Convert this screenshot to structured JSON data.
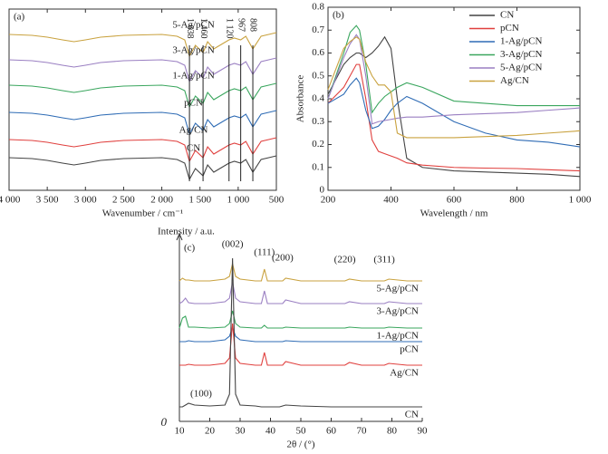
{
  "chart_data": [
    {
      "type": "line",
      "panel_label": "(a)",
      "xlabel": "Wavenumber / cm⁻¹",
      "reverse_x": true,
      "x": [
        4000,
        3700,
        3500,
        3300,
        3150,
        3000,
        2800,
        2500,
        2000,
        1800,
        1700,
        1638,
        1560,
        1460,
        1400,
        1320,
        1240,
        1120,
        1050,
        967,
        900,
        808,
        700,
        600,
        500
      ],
      "xlim": [
        4000,
        500
      ],
      "xticks": [
        {
          "value": 4000,
          "label": "4 000"
        },
        {
          "value": 3500,
          "label": "3 500"
        },
        {
          "value": 3000,
          "label": "3 000"
        },
        {
          "value": 2500,
          "label": "2 500"
        },
        {
          "value": 2000,
          "label": "2 000"
        },
        {
          "value": 1500,
          "label": "1 500"
        },
        {
          "value": 1000,
          "label": "1 000"
        },
        500
      ],
      "ylim": [
        0,
        100
      ],
      "annotations": [
        {
          "value": 1638,
          "label": "1 638"
        },
        {
          "value": 1460,
          "label": "1 460"
        },
        {
          "value": 1120,
          "label": "1 120"
        },
        {
          "value": 967,
          "label": "967"
        },
        {
          "value": 808,
          "label": "808"
        }
      ],
      "series": [
        {
          "name": "5-Ag/pCN",
          "color": "#c9a23f",
          "values": [
            86,
            85.5,
            84.5,
            83,
            82,
            83,
            84.5,
            85.5,
            86,
            85,
            83,
            74,
            80,
            76,
            82,
            78,
            80,
            83,
            84,
            83,
            85,
            78,
            85,
            86,
            87
          ]
        },
        {
          "name": "3-Ag/pCN",
          "color": "#9a7fc2",
          "values": [
            72,
            71.5,
            70.5,
            69,
            68,
            69,
            70.5,
            71.5,
            72,
            71,
            69,
            60,
            66,
            62,
            68,
            64,
            66,
            69,
            70,
            69,
            71,
            64,
            71,
            72,
            73
          ]
        },
        {
          "name": "1-Ag/pCN",
          "color": "#3aa65e",
          "values": [
            58,
            57.5,
            56.5,
            55,
            54,
            55,
            56.5,
            57.5,
            58,
            57,
            55,
            46,
            52,
            48,
            54,
            50,
            52,
            55,
            56,
            55,
            57,
            50,
            57,
            58,
            59
          ]
        },
        {
          "name": "pCN",
          "color": "#2f6cb5",
          "values": [
            43,
            42.5,
            41.5,
            40,
            39,
            40,
            41.5,
            42.5,
            43,
            42,
            40,
            31,
            37,
            33,
            39,
            35,
            37,
            40,
            41,
            40,
            42,
            35,
            42,
            43,
            44
          ]
        },
        {
          "name": "Ag/CN",
          "color": "#e0403e",
          "values": [
            28,
            27.5,
            26.5,
            25,
            24,
            25,
            26.5,
            27.5,
            28,
            27,
            25,
            16,
            22,
            18,
            24,
            20,
            22,
            25,
            26,
            25,
            27,
            20,
            27,
            28,
            29
          ]
        },
        {
          "name": "CN",
          "color": "#444444",
          "values": [
            18,
            17.5,
            16.5,
            15,
            14,
            15,
            16.5,
            17.5,
            18,
            17,
            15,
            6,
            12,
            8,
            14,
            10,
            12,
            15,
            16,
            15,
            17,
            10,
            17,
            18,
            19
          ]
        }
      ]
    },
    {
      "type": "line",
      "panel_label": "(b)",
      "xlabel": "Wavelength / nm",
      "ylabel": "Absorbance",
      "legend": "upper right",
      "x": [
        200,
        250,
        270,
        290,
        300,
        320,
        340,
        360,
        380,
        400,
        420,
        450,
        500,
        600,
        700,
        800,
        900,
        1000
      ],
      "xlim": [
        200,
        1000
      ],
      "xticks": [
        200,
        400,
        600,
        800,
        {
          "value": 1000,
          "label": "1 000"
        }
      ],
      "ylim": [
        0,
        0.8
      ],
      "yticks": [
        0,
        0.1,
        0.2,
        0.3,
        0.4,
        0.5,
        0.6,
        0.7,
        0.8
      ],
      "series": [
        {
          "name": "CN",
          "color": "#444444",
          "values": [
            0.42,
            0.55,
            0.58,
            0.6,
            0.6,
            0.58,
            0.6,
            0.63,
            0.67,
            0.62,
            0.4,
            0.14,
            0.1,
            0.085,
            0.08,
            0.075,
            0.07,
            0.06
          ]
        },
        {
          "name": "pCN",
          "color": "#e0403e",
          "values": [
            0.38,
            0.45,
            0.5,
            0.55,
            0.55,
            0.4,
            0.22,
            0.17,
            0.16,
            0.15,
            0.14,
            0.12,
            0.11,
            0.1,
            0.097,
            0.095,
            0.09,
            0.085
          ]
        },
        {
          "name": "1-Ag/pCN",
          "color": "#2f6cb5",
          "values": [
            0.38,
            0.42,
            0.46,
            0.49,
            0.47,
            0.35,
            0.27,
            0.28,
            0.31,
            0.35,
            0.38,
            0.41,
            0.38,
            0.3,
            0.25,
            0.22,
            0.21,
            0.19
          ]
        },
        {
          "name": "3-Ag/pCN",
          "color": "#3aa65e",
          "values": [
            0.4,
            0.6,
            0.69,
            0.72,
            0.7,
            0.55,
            0.34,
            0.38,
            0.41,
            0.43,
            0.45,
            0.47,
            0.45,
            0.39,
            0.38,
            0.37,
            0.37,
            0.37
          ]
        },
        {
          "name": "5-Ag/pCN",
          "color": "#9a7fc2",
          "values": [
            0.4,
            0.58,
            0.64,
            0.68,
            0.66,
            0.5,
            0.29,
            0.3,
            0.305,
            0.31,
            0.315,
            0.32,
            0.32,
            0.33,
            0.335,
            0.34,
            0.35,
            0.36
          ]
        },
        {
          "name": "Ag/CN",
          "color": "#c9a23f",
          "values": [
            0.44,
            0.62,
            0.65,
            0.67,
            0.66,
            0.56,
            0.5,
            0.46,
            0.46,
            0.43,
            0.25,
            0.23,
            0.23,
            0.23,
            0.235,
            0.24,
            0.25,
            0.26
          ]
        }
      ]
    },
    {
      "type": "line",
      "panel_label": "(c)",
      "xlabel": "2θ / (°)",
      "ylabel": "Intensity / a.u.",
      "x": [
        10,
        11,
        12,
        13,
        15,
        20,
        25,
        26.5,
        27.5,
        28.5,
        30,
        35,
        37,
        38,
        39,
        43,
        44,
        45,
        50,
        60,
        63,
        64.5,
        66,
        70,
        76,
        77.5,
        79,
        85,
        90
      ],
      "xlim": [
        10,
        90
      ],
      "xticks": [
        10,
        20,
        30,
        40,
        50,
        60,
        70,
        80,
        90
      ],
      "ylim": [
        0,
        100
      ],
      "yticks": [
        0
      ],
      "annotations": [
        {
          "value": 13,
          "label": "(100)"
        },
        {
          "value": 27.5,
          "label": "(002)"
        },
        {
          "value": 38,
          "label": "(111)"
        },
        {
          "value": 44,
          "label": "(200)"
        },
        {
          "value": 64.5,
          "label": "(220)"
        },
        {
          "value": 77.5,
          "label": "(311)"
        }
      ],
      "series": [
        {
          "name": "5-Ag/pCN",
          "color": "#c9a23f",
          "values": [
            77.5,
            79,
            78,
            78,
            77.5,
            77.5,
            78.5,
            80,
            87,
            80,
            78.5,
            77.5,
            77.5,
            84,
            77.5,
            77.5,
            77.5,
            79,
            77.5,
            77.5,
            77.5,
            77.5,
            78.5,
            77.5,
            77.5,
            77.5,
            78.5,
            77.5,
            77.5
          ]
        },
        {
          "name": "3-Ag/pCN",
          "color": "#9a7fc2",
          "values": [
            65,
            66,
            68,
            65.5,
            65,
            65,
            66,
            68,
            77,
            68,
            66,
            65,
            65,
            72,
            65,
            65,
            65,
            67,
            65,
            65,
            65,
            65,
            66,
            65,
            65,
            65,
            66,
            65,
            65
          ]
        },
        {
          "name": "1-Ag/pCN",
          "color": "#3aa65e",
          "values": [
            51.5,
            57,
            58,
            52,
            52,
            51.5,
            52,
            54,
            61,
            54,
            52,
            51.5,
            51.5,
            53,
            51.5,
            51.5,
            51.5,
            52,
            51.5,
            51.5,
            51.5,
            51.5,
            52,
            51.5,
            51.5,
            51.5,
            52,
            51.5,
            51.5
          ]
        },
        {
          "name": "pCN",
          "color": "#2f6cb5",
          "values": [
            44,
            44,
            44,
            44.5,
            44,
            44,
            45,
            47,
            52,
            47,
            45,
            44,
            44,
            44,
            44,
            44,
            44,
            44.5,
            44,
            44,
            44,
            44,
            44,
            44,
            44,
            44,
            44,
            44,
            44
          ]
        },
        {
          "name": "Ag/CN",
          "color": "#e0403e",
          "values": [
            31,
            31,
            31,
            31.5,
            31,
            31,
            32,
            35,
            54,
            35,
            32,
            31,
            31,
            38,
            31,
            31,
            31,
            33,
            31,
            31,
            31,
            31,
            32.5,
            31,
            31,
            31,
            32,
            31,
            31
          ]
        },
        {
          "name": "CN",
          "color": "#444444",
          "values": [
            8,
            8,
            9,
            10,
            9,
            8.5,
            9,
            15,
            90,
            15,
            9,
            8.5,
            8,
            8,
            8,
            8,
            8.5,
            9,
            8.5,
            8,
            8,
            8,
            8,
            8,
            8,
            8,
            8,
            8,
            8
          ]
        }
      ]
    }
  ]
}
